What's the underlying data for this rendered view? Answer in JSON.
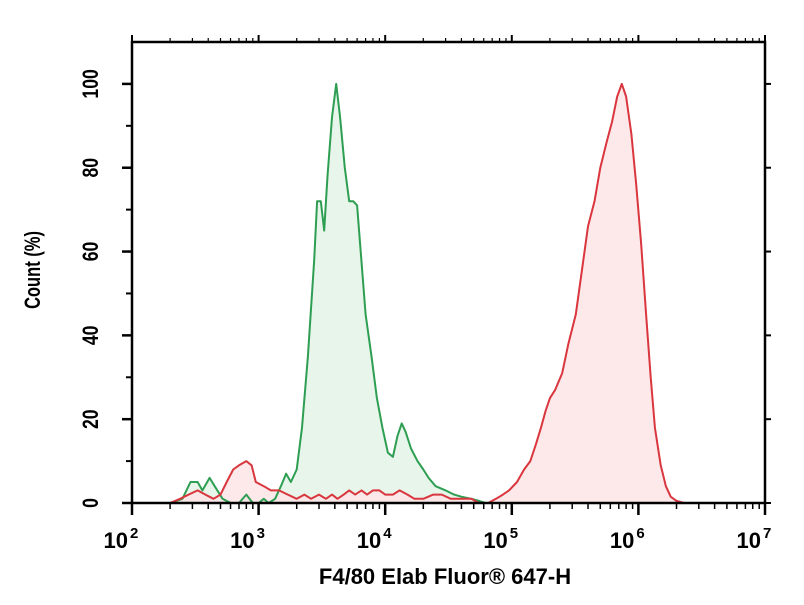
{
  "chart_data": {
    "type": "area",
    "title": "",
    "xlabel": "F4/80 Elab Fluor® 647-H",
    "ylabel": "Count (%)",
    "x_scale": "log",
    "xlim": [
      100,
      10000000
    ],
    "ylim": [
      0,
      110
    ],
    "grid": false,
    "legend": "none",
    "x_ticks": [
      {
        "base": "10",
        "exp": "2",
        "value": 100
      },
      {
        "base": "10",
        "exp": "3",
        "value": 1000
      },
      {
        "base": "10",
        "exp": "4",
        "value": 10000
      },
      {
        "base": "10",
        "exp": "5",
        "value": 100000
      },
      {
        "base": "10",
        "exp": "6",
        "value": 1000000
      },
      {
        "base": "10",
        "exp": "7",
        "value": 10000000
      }
    ],
    "y_ticks": [
      "0",
      "20",
      "40",
      "60",
      "80",
      "100"
    ],
    "series": [
      {
        "color": "#2e9e52",
        "fill": "#e3f3e6",
        "points": [
          [
            200,
            0
          ],
          [
            250,
            1
          ],
          [
            290,
            5
          ],
          [
            330,
            5
          ],
          [
            360,
            3
          ],
          [
            410,
            6
          ],
          [
            450,
            4
          ],
          [
            520,
            1
          ],
          [
            600,
            0
          ],
          [
            700,
            0
          ],
          [
            800,
            2
          ],
          [
            900,
            0
          ],
          [
            1000,
            0
          ],
          [
            1100,
            1
          ],
          [
            1200,
            0
          ],
          [
            1350,
            1
          ],
          [
            1500,
            4
          ],
          [
            1650,
            7
          ],
          [
            1800,
            5
          ],
          [
            2000,
            8
          ],
          [
            2200,
            18
          ],
          [
            2450,
            35
          ],
          [
            2750,
            58
          ],
          [
            2900,
            72
          ],
          [
            3100,
            72
          ],
          [
            3300,
            65
          ],
          [
            3500,
            78
          ],
          [
            3800,
            92
          ],
          [
            4100,
            100
          ],
          [
            4400,
            92
          ],
          [
            4800,
            80
          ],
          [
            5200,
            72
          ],
          [
            5600,
            72
          ],
          [
            6000,
            71
          ],
          [
            6400,
            60
          ],
          [
            7000,
            45
          ],
          [
            7800,
            35
          ],
          [
            8600,
            25
          ],
          [
            9500,
            18
          ],
          [
            10500,
            12
          ],
          [
            11500,
            11
          ],
          [
            12500,
            16
          ],
          [
            13500,
            19
          ],
          [
            14500,
            17
          ],
          [
            16000,
            13
          ],
          [
            18000,
            10
          ],
          [
            20000,
            8
          ],
          [
            22000,
            6
          ],
          [
            25000,
            4
          ],
          [
            30000,
            3
          ],
          [
            35000,
            2
          ],
          [
            40000,
            1.5
          ],
          [
            48000,
            1
          ],
          [
            55000,
            0.5
          ],
          [
            62000,
            0
          ],
          [
            70000,
            0
          ]
        ]
      },
      {
        "color": "#d9363e",
        "fill": "#fde4e6",
        "points": [
          [
            200,
            0
          ],
          [
            240,
            1
          ],
          [
            280,
            2
          ],
          [
            330,
            3
          ],
          [
            380,
            2
          ],
          [
            440,
            1
          ],
          [
            500,
            2
          ],
          [
            560,
            5
          ],
          [
            630,
            8
          ],
          [
            700,
            9
          ],
          [
            800,
            10
          ],
          [
            880,
            9
          ],
          [
            950,
            5
          ],
          [
            1100,
            4
          ],
          [
            1250,
            3
          ],
          [
            1450,
            3
          ],
          [
            1700,
            2
          ],
          [
            2000,
            1
          ],
          [
            2300,
            2
          ],
          [
            2600,
            1
          ],
          [
            3000,
            2
          ],
          [
            3400,
            1
          ],
          [
            3800,
            2
          ],
          [
            4200,
            1
          ],
          [
            4700,
            2
          ],
          [
            5200,
            3
          ],
          [
            5800,
            2
          ],
          [
            6500,
            3
          ],
          [
            7200,
            2
          ],
          [
            8000,
            3
          ],
          [
            9000,
            3
          ],
          [
            10000,
            2
          ],
          [
            11500,
            2
          ],
          [
            13000,
            3
          ],
          [
            15000,
            2
          ],
          [
            17000,
            1
          ],
          [
            20000,
            1
          ],
          [
            24000,
            2
          ],
          [
            28000,
            2
          ],
          [
            33000,
            1
          ],
          [
            40000,
            1
          ],
          [
            48000,
            1
          ],
          [
            55000,
            0
          ],
          [
            65000,
            0
          ],
          [
            75000,
            1
          ],
          [
            85000,
            2
          ],
          [
            95000,
            3
          ],
          [
            110000,
            5
          ],
          [
            125000,
            8
          ],
          [
            140000,
            10
          ],
          [
            155000,
            14
          ],
          [
            170000,
            18
          ],
          [
            185000,
            22
          ],
          [
            200000,
            25
          ],
          [
            220000,
            27
          ],
          [
            250000,
            31
          ],
          [
            280000,
            38
          ],
          [
            320000,
            45
          ],
          [
            360000,
            56
          ],
          [
            400000,
            66
          ],
          [
            450000,
            72
          ],
          [
            500000,
            80
          ],
          [
            560000,
            86
          ],
          [
            620000,
            91
          ],
          [
            680000,
            97
          ],
          [
            740000,
            100
          ],
          [
            800000,
            97
          ],
          [
            880000,
            88
          ],
          [
            960000,
            76
          ],
          [
            1050000,
            62
          ],
          [
            1150000,
            45
          ],
          [
            1250000,
            30
          ],
          [
            1350000,
            18
          ],
          [
            1500000,
            9
          ],
          [
            1650000,
            4
          ],
          [
            1800000,
            1.5
          ],
          [
            2000000,
            0.5
          ],
          [
            2300000,
            0
          ],
          [
            2800000,
            0
          ]
        ]
      }
    ]
  }
}
